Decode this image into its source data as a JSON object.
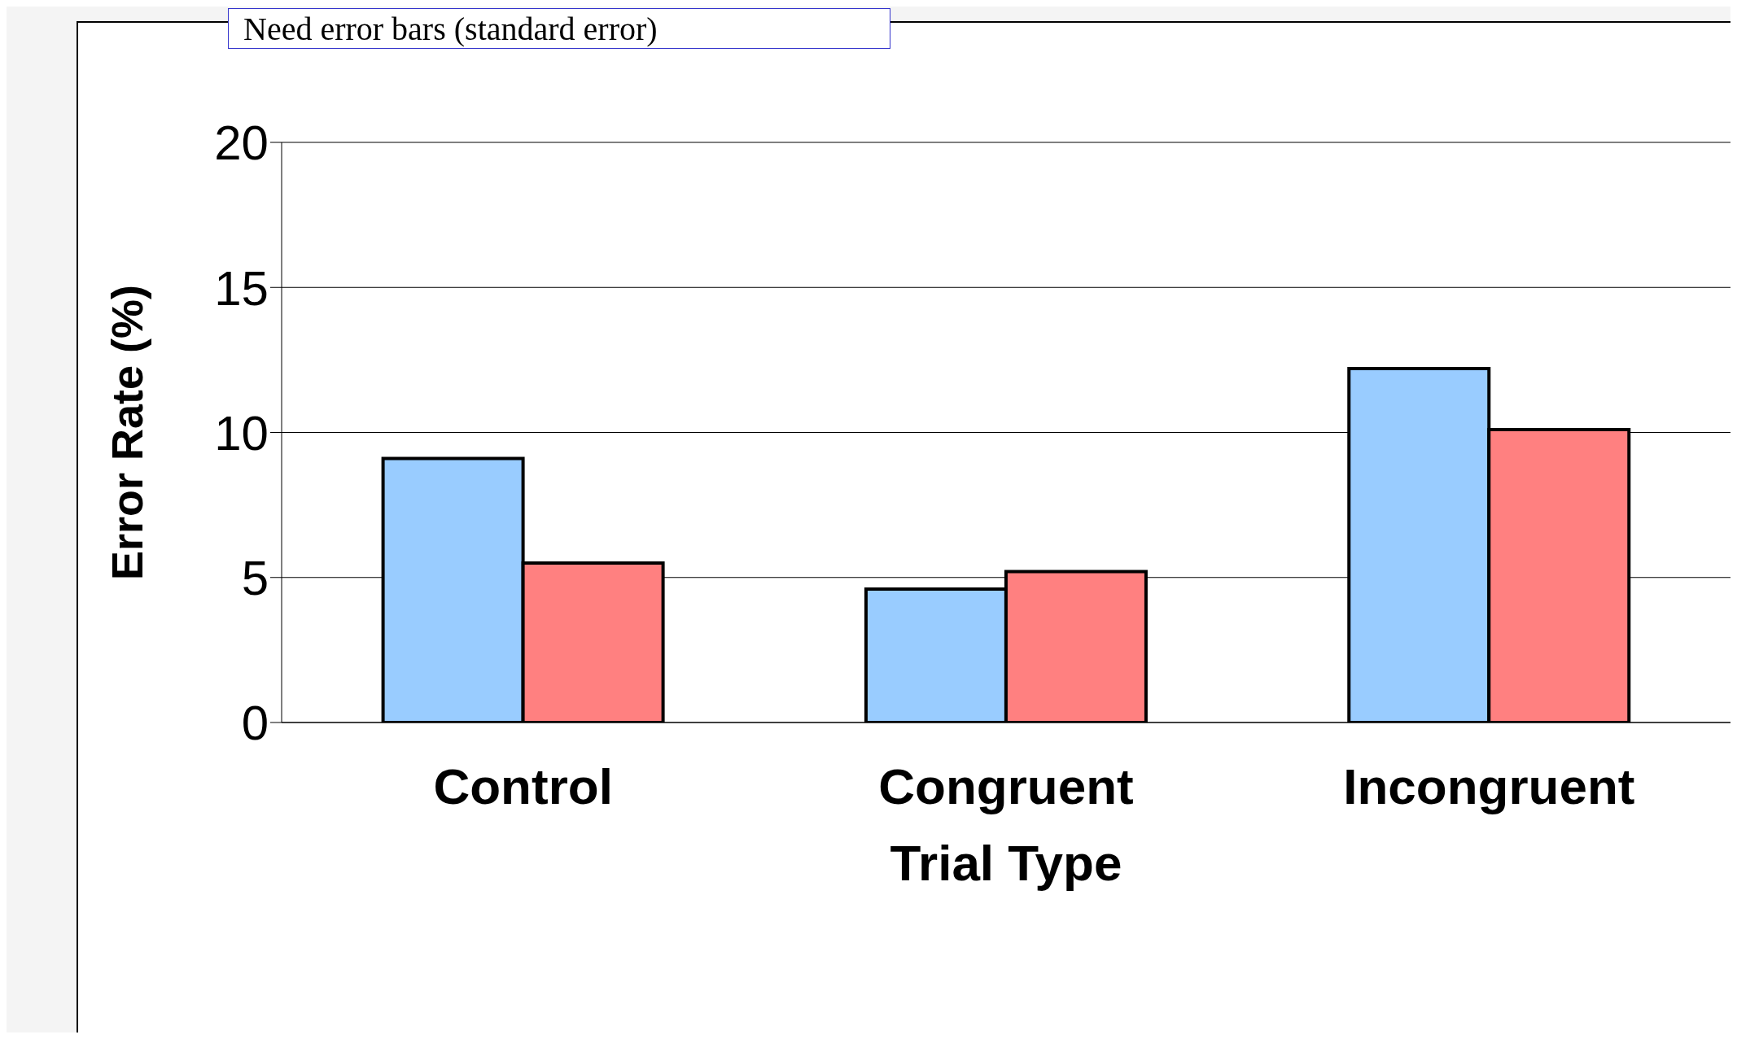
{
  "chart_data": {
    "type": "bar",
    "xlabel": "Trial Type",
    "ylabel": "Error Rate (%)",
    "annotations": [
      "Need error bars (standard error)"
    ],
    "categories": [
      "Control",
      "Congruent",
      "Incongruent"
    ],
    "series": [
      {
        "color": "#99ccff",
        "values": [
          9.1,
          4.6,
          12.2
        ]
      },
      {
        "color": "#ff8080",
        "values": [
          5.5,
          5.2,
          10.1
        ]
      }
    ],
    "ylim": [
      0,
      20
    ],
    "yticks": [
      0,
      5,
      10,
      15,
      20
    ],
    "grid": "y"
  }
}
